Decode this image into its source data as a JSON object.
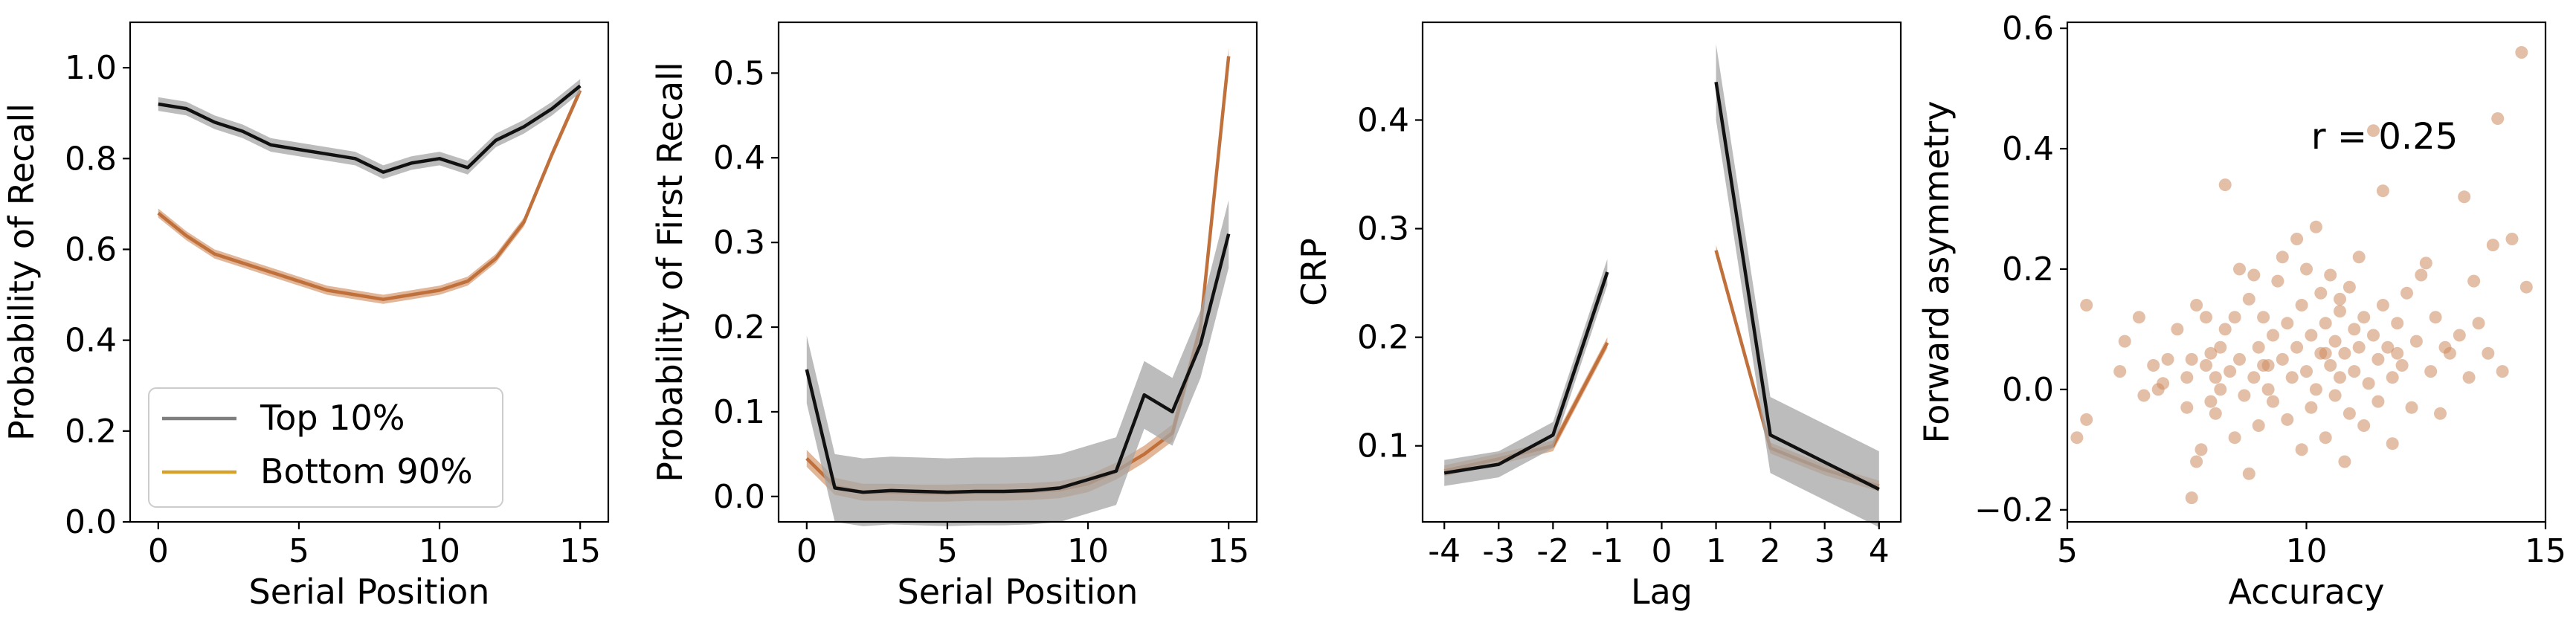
{
  "colors": {
    "top": "#111111",
    "top_band": "#a6a6a6",
    "bottom": "#c0703b",
    "bottom_band": "#dba47e",
    "legend_bottom_line": "#d4a12a",
    "legend_top_line": "#7f7f7f",
    "scatter": "#cd8a5f"
  },
  "chart_data": [
    {
      "type": "line",
      "xlabel": "Serial Position",
      "ylabel": "Probability of Recall",
      "xlim": [
        -1,
        16
      ],
      "ylim": [
        0.0,
        1.1
      ],
      "xticks": [
        "0",
        "5",
        "10",
        "15"
      ],
      "yticks": [
        "0.0",
        "0.2",
        "0.4",
        "0.6",
        "0.8",
        "1.0"
      ],
      "legend": {
        "placement": "lower-left",
        "entries": [
          "Top 10%",
          "Bottom 90%"
        ]
      },
      "x": [
        0,
        1,
        2,
        3,
        4,
        5,
        6,
        7,
        8,
        9,
        10,
        11,
        12,
        13,
        14,
        15
      ],
      "series": [
        {
          "name": "Top 10%",
          "values": [
            0.92,
            0.91,
            0.88,
            0.86,
            0.83,
            0.82,
            0.81,
            0.8,
            0.77,
            0.79,
            0.8,
            0.78,
            0.84,
            0.87,
            0.91,
            0.96
          ],
          "band": 0.015
        },
        {
          "name": "Bottom 90%",
          "values": [
            0.68,
            0.63,
            0.59,
            0.57,
            0.55,
            0.53,
            0.51,
            0.5,
            0.49,
            0.5,
            0.51,
            0.53,
            0.58,
            0.66,
            0.81,
            0.95
          ],
          "band": 0.01
        }
      ]
    },
    {
      "type": "line",
      "xlabel": "Serial Position",
      "ylabel": "Probability of First Recall",
      "xlim": [
        -1,
        16
      ],
      "ylim": [
        -0.03,
        0.56
      ],
      "xticks": [
        "0",
        "5",
        "10",
        "15"
      ],
      "yticks": [
        "0.0",
        "0.1",
        "0.2",
        "0.3",
        "0.4",
        "0.5"
      ],
      "x": [
        0,
        1,
        2,
        3,
        4,
        5,
        6,
        7,
        8,
        9,
        10,
        11,
        12,
        13,
        14,
        15
      ],
      "series": [
        {
          "name": "Top 10%",
          "values": [
            0.15,
            0.01,
            0.005,
            0.007,
            0.006,
            0.005,
            0.006,
            0.006,
            0.007,
            0.01,
            0.02,
            0.03,
            0.12,
            0.1,
            0.18,
            0.31
          ],
          "band": 0.04
        },
        {
          "name": "Bottom 90%",
          "values": [
            0.045,
            0.012,
            0.005,
            0.005,
            0.004,
            0.004,
            0.005,
            0.005,
            0.006,
            0.008,
            0.015,
            0.03,
            0.05,
            0.075,
            0.2,
            0.52
          ],
          "band": 0.01
        }
      ]
    },
    {
      "type": "line",
      "xlabel": "Lag",
      "ylabel": "CRP",
      "xlim": [
        -4.4,
        4.4
      ],
      "ylim": [
        0.03,
        0.49
      ],
      "xticks": [
        "-4",
        "-3",
        "-2",
        "-1",
        "0",
        "1",
        "2",
        "3",
        "4"
      ],
      "yticks": [
        "0.1",
        "0.2",
        "0.3",
        "0.4"
      ],
      "segments": [
        {
          "x": [
            -4,
            -3,
            -2,
            -1
          ],
          "series": [
            {
              "name": "Top 10%",
              "values": [
                0.075,
                0.083,
                0.11,
                0.26
              ],
              "band": 0.012
            },
            {
              "name": "Bottom 90%",
              "values": [
                0.077,
                0.088,
                0.1,
                0.195
              ],
              "band": 0.005
            }
          ]
        },
        {
          "x": [
            1,
            2,
            3,
            4
          ],
          "series": [
            {
              "name": "Top 10%",
              "values": [
                0.435,
                0.11,
                0.085,
                0.06
              ],
              "band": 0.035
            },
            {
              "name": "Bottom 90%",
              "values": [
                0.28,
                0.098,
                0.078,
                0.063
              ],
              "band": 0.005
            }
          ]
        }
      ]
    },
    {
      "type": "scatter",
      "xlabel": "Accuracy",
      "ylabel": "Forward asymmetry",
      "xlim": [
        5,
        15
      ],
      "ylim": [
        -0.22,
        0.61
      ],
      "xticks": [
        "5",
        "10",
        "15"
      ],
      "yticks": [
        "−0.2",
        "0.0",
        "0.2",
        "0.4",
        "0.6"
      ],
      "annotation": "r = 0.25",
      "points": [
        [
          5.2,
          -0.08
        ],
        [
          5.4,
          -0.05
        ],
        [
          5.4,
          0.14
        ],
        [
          6.1,
          0.03
        ],
        [
          6.2,
          0.08
        ],
        [
          6.5,
          0.12
        ],
        [
          6.8,
          0.04
        ],
        [
          6.9,
          0.0
        ],
        [
          7.0,
          0.01
        ],
        [
          7.1,
          0.05
        ],
        [
          7.3,
          0.1
        ],
        [
          7.5,
          -0.03
        ],
        [
          7.5,
          0.02
        ],
        [
          7.6,
          -0.18
        ],
        [
          7.7,
          -0.12
        ],
        [
          7.7,
          0.14
        ],
        [
          7.8,
          -0.1
        ],
        [
          7.9,
          0.12
        ],
        [
          7.9,
          0.04
        ],
        [
          8.0,
          -0.02
        ],
        [
          8.0,
          0.06
        ],
        [
          8.1,
          0.02
        ],
        [
          8.1,
          -0.04
        ],
        [
          8.2,
          0.07
        ],
        [
          8.2,
          0.0
        ],
        [
          8.3,
          0.1
        ],
        [
          8.3,
          0.34
        ],
        [
          8.4,
          0.03
        ],
        [
          8.5,
          -0.08
        ],
        [
          8.5,
          0.12
        ],
        [
          8.6,
          0.2
        ],
        [
          8.6,
          0.05
        ],
        [
          8.7,
          -0.01
        ],
        [
          8.8,
          -0.14
        ],
        [
          8.8,
          0.15
        ],
        [
          8.9,
          0.02
        ],
        [
          9.0,
          0.07
        ],
        [
          9.0,
          -0.06
        ],
        [
          9.1,
          0.12
        ],
        [
          9.1,
          0.04
        ],
        [
          9.2,
          0.0
        ],
        [
          9.3,
          0.09
        ],
        [
          9.3,
          -0.02
        ],
        [
          9.4,
          0.18
        ],
        [
          9.5,
          0.05
        ],
        [
          9.5,
          0.22
        ],
        [
          9.6,
          -0.05
        ],
        [
          9.6,
          0.11
        ],
        [
          9.7,
          0.02
        ],
        [
          9.8,
          0.25
        ],
        [
          9.8,
          0.07
        ],
        [
          9.9,
          -0.1
        ],
        [
          9.9,
          0.14
        ],
        [
          10.0,
          0.03
        ],
        [
          10.0,
          0.2
        ],
        [
          10.1,
          -0.03
        ],
        [
          10.1,
          0.09
        ],
        [
          10.2,
          0.0
        ],
        [
          10.2,
          0.27
        ],
        [
          10.3,
          0.06
        ],
        [
          10.3,
          0.16
        ],
        [
          10.4,
          -0.08
        ],
        [
          10.4,
          0.11
        ],
        [
          10.5,
          0.04
        ],
        [
          10.5,
          0.19
        ],
        [
          10.6,
          -0.01
        ],
        [
          10.6,
          0.08
        ],
        [
          10.7,
          0.13
        ],
        [
          10.7,
          0.02
        ],
        [
          10.8,
          -0.12
        ],
        [
          10.8,
          0.06
        ],
        [
          10.9,
          0.17
        ],
        [
          10.9,
          -0.04
        ],
        [
          11.0,
          0.1
        ],
        [
          11.0,
          0.03
        ],
        [
          11.1,
          0.22
        ],
        [
          11.1,
          0.07
        ],
        [
          11.2,
          -0.06
        ],
        [
          11.2,
          0.12
        ],
        [
          11.3,
          0.01
        ],
        [
          11.4,
          0.09
        ],
        [
          11.4,
          0.43
        ],
        [
          11.5,
          0.05
        ],
        [
          11.5,
          -0.02
        ],
        [
          11.6,
          0.33
        ],
        [
          11.6,
          0.14
        ],
        [
          11.7,
          0.07
        ],
        [
          11.8,
          -0.09
        ],
        [
          11.8,
          0.02
        ],
        [
          11.9,
          0.11
        ],
        [
          12.0,
          0.04
        ],
        [
          12.1,
          0.16
        ],
        [
          12.2,
          -0.03
        ],
        [
          12.3,
          0.08
        ],
        [
          12.5,
          0.21
        ],
        [
          12.6,
          0.03
        ],
        [
          12.7,
          0.12
        ],
        [
          12.8,
          -0.04
        ],
        [
          13.0,
          0.06
        ],
        [
          13.2,
          0.09
        ],
        [
          13.3,
          0.32
        ],
        [
          13.4,
          0.02
        ],
        [
          13.5,
          0.18
        ],
        [
          13.8,
          0.06
        ],
        [
          13.9,
          0.24
        ],
        [
          14.0,
          0.45
        ],
        [
          14.1,
          0.03
        ],
        [
          14.3,
          0.25
        ],
        [
          14.5,
          0.56
        ],
        [
          14.6,
          0.17
        ],
        [
          12.4,
          0.19
        ],
        [
          11.9,
          0.06
        ],
        [
          10.4,
          0.06
        ],
        [
          9.2,
          0.04
        ],
        [
          8.9,
          0.19
        ],
        [
          7.6,
          0.05
        ],
        [
          12.9,
          0.07
        ],
        [
          13.6,
          0.11
        ],
        [
          6.6,
          -0.01
        ],
        [
          10.7,
          0.15
        ]
      ]
    }
  ]
}
